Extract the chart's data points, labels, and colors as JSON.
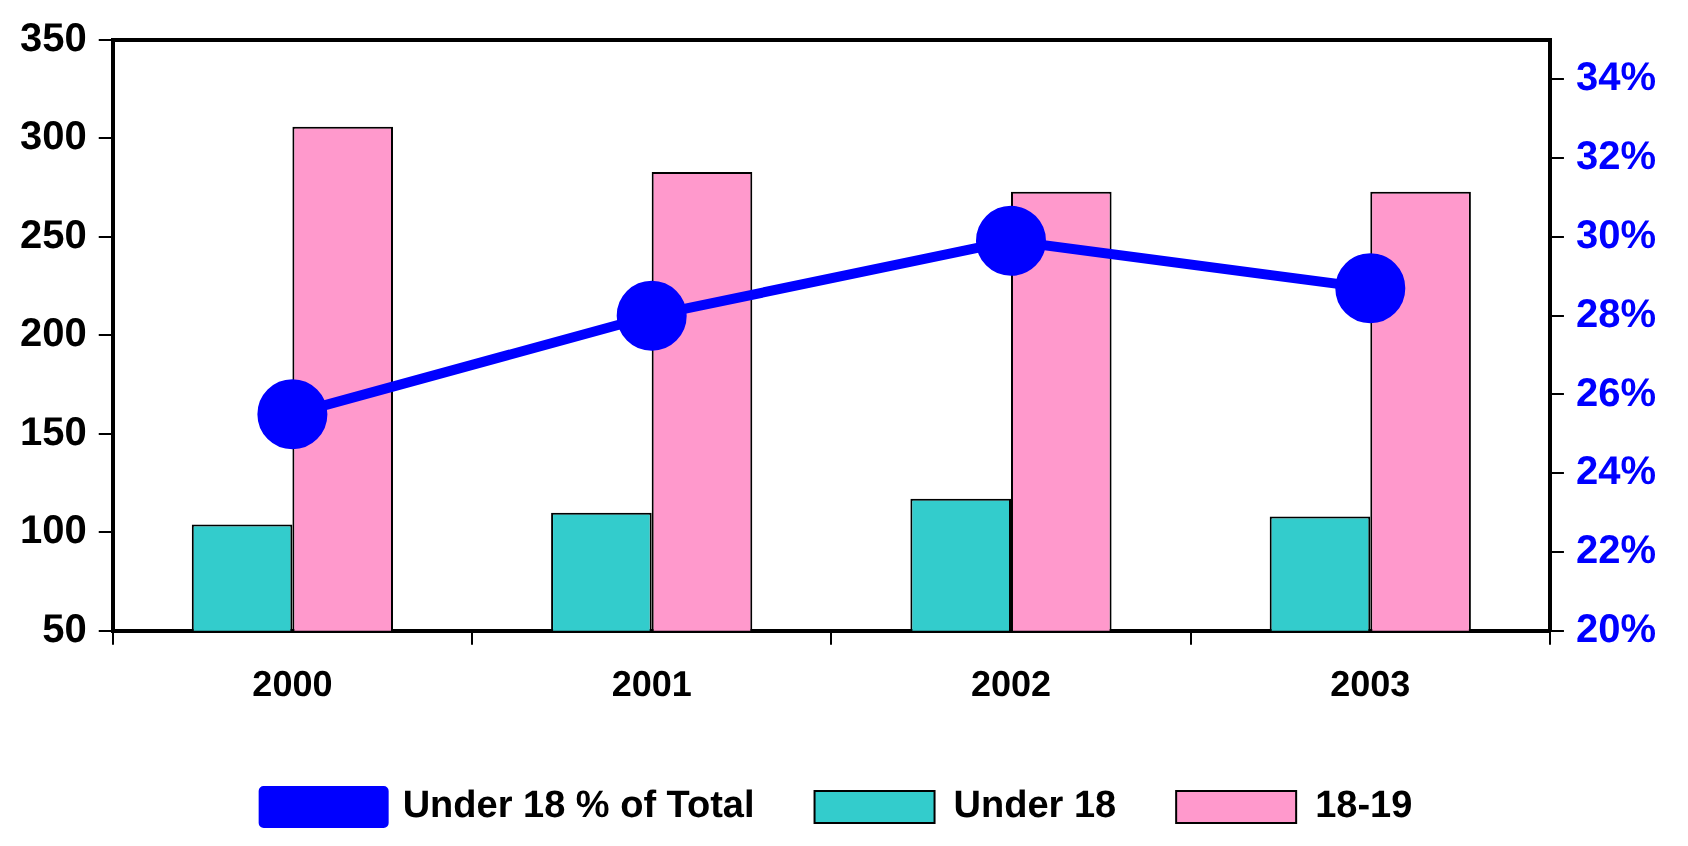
{
  "chart_data": {
    "type": "bar",
    "categories": [
      "2000",
      "2001",
      "2002",
      "2003"
    ],
    "series": [
      {
        "name": "Under 18",
        "color": "#33cccc",
        "values": [
          104,
          110,
          117,
          108
        ]
      },
      {
        "name": "18-19",
        "color": "#ff99cc",
        "values": [
          306,
          283,
          273,
          273
        ]
      },
      {
        "name": "Under 18 % of Total",
        "type": "line",
        "axis": "y2",
        "color": "#0000ff",
        "values": [
          25.5,
          28.0,
          29.9,
          28.7
        ]
      }
    ],
    "ylim": [
      50,
      350
    ],
    "yticks": [
      50,
      100,
      150,
      200,
      250,
      300,
      350
    ],
    "y2lim": [
      20,
      35
    ],
    "y2ticks": [
      {
        "value": 20,
        "label": "20%"
      },
      {
        "value": 22,
        "label": "22%"
      },
      {
        "value": 24,
        "label": "24%"
      },
      {
        "value": 26,
        "label": "26%"
      },
      {
        "value": 28,
        "label": "28%"
      },
      {
        "value": 30,
        "label": "30%"
      },
      {
        "value": 32,
        "label": "32%"
      },
      {
        "value": 34,
        "label": "34%"
      }
    ],
    "grid": false,
    "legend": "bottom",
    "marker": "circle",
    "line_style": "solid"
  }
}
